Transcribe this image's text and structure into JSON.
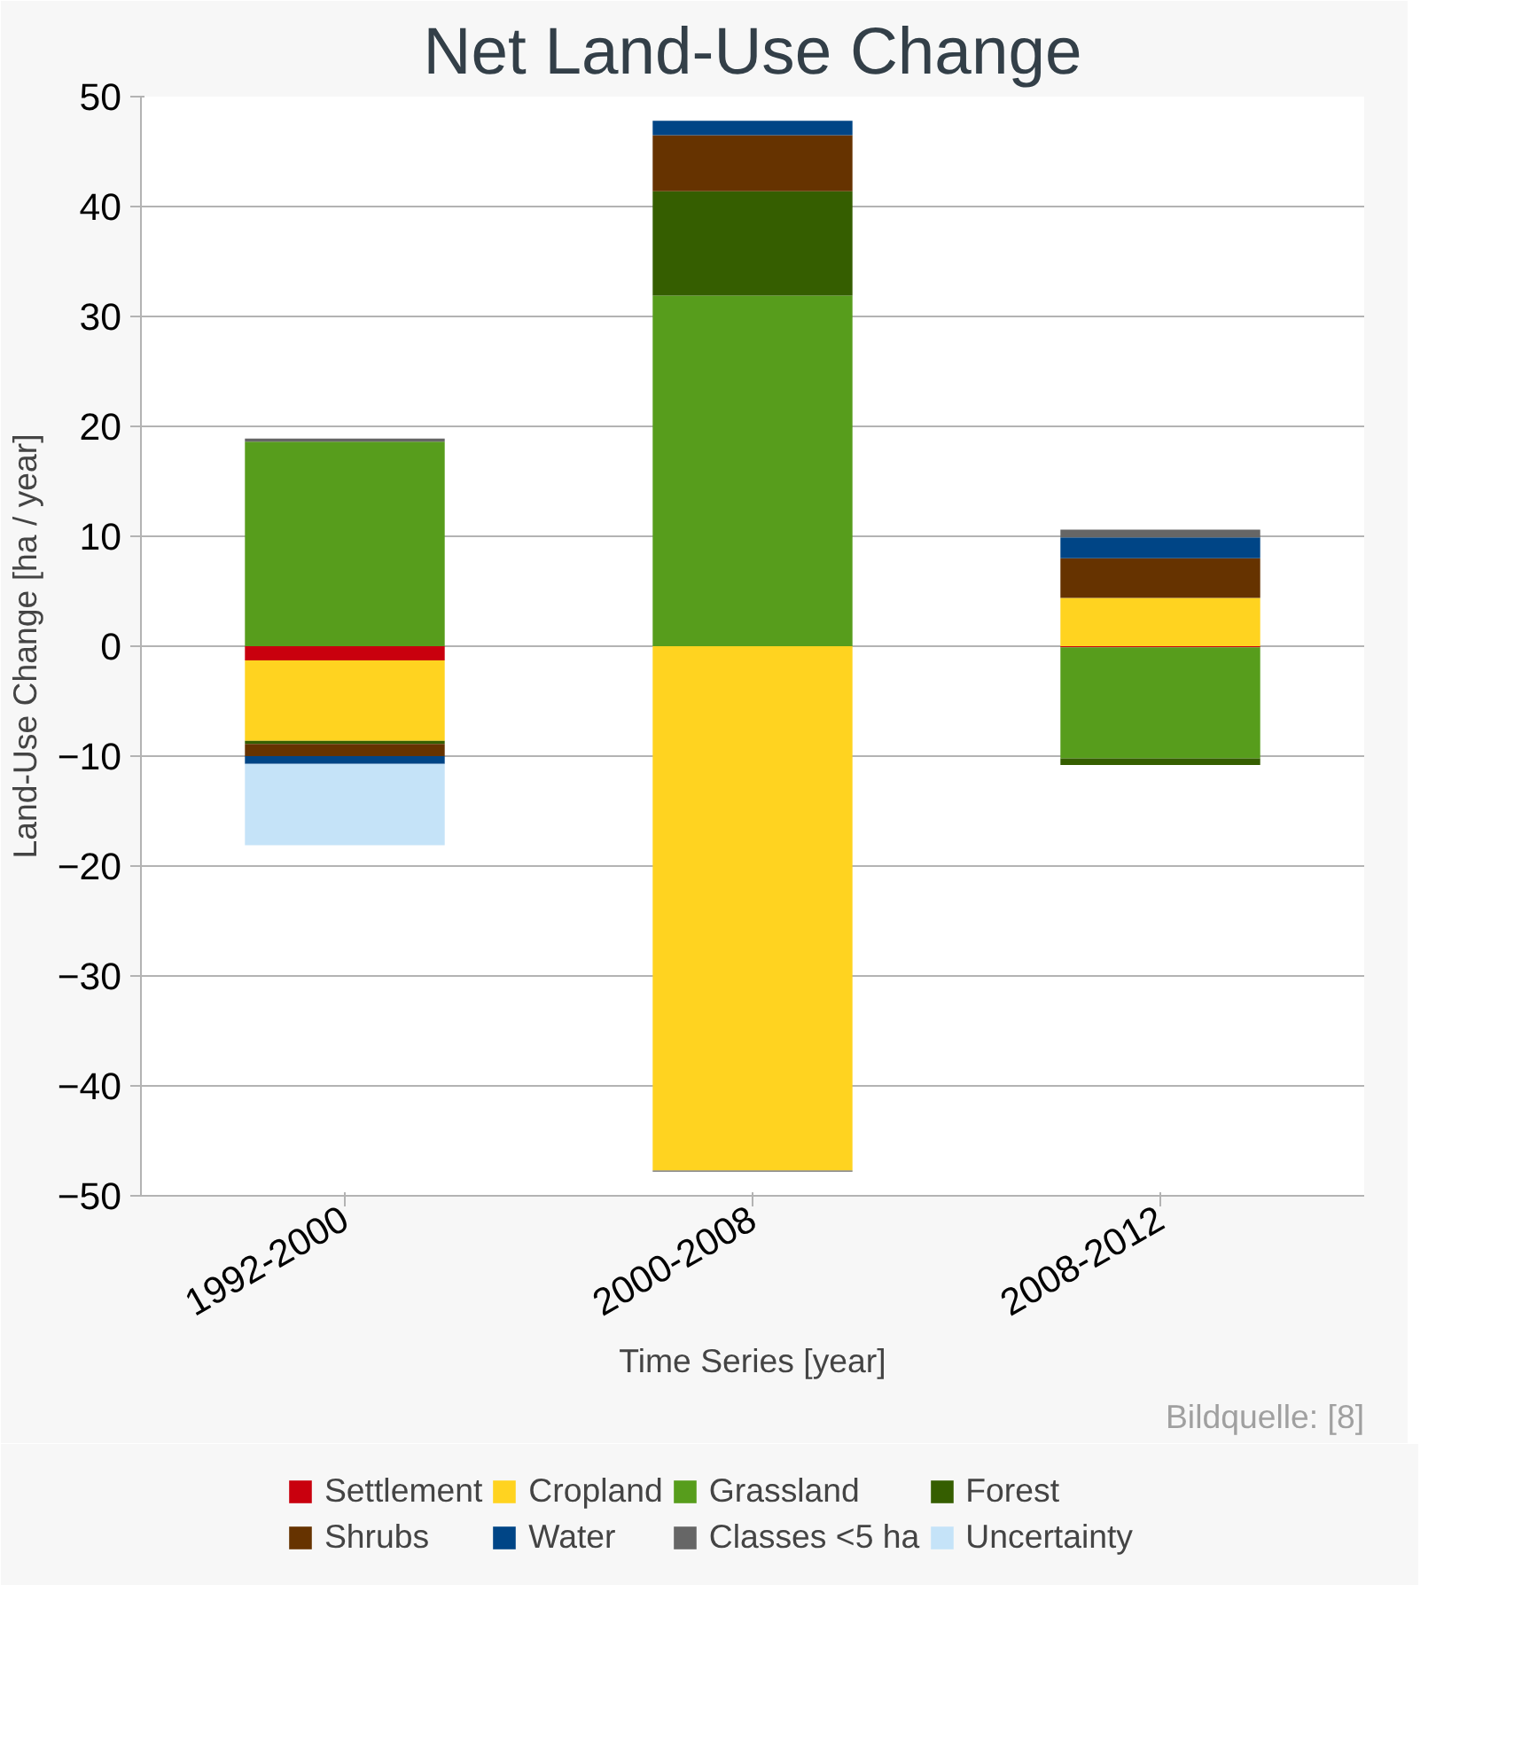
{
  "chart_data": {
    "type": "bar",
    "title": "Net Land-Use Change",
    "xlabel": "Time Series [year]",
    "ylabel": "Land-Use Change [ha / year]",
    "categories": [
      "1992-2000",
      "2000-2008",
      "2008-2012"
    ],
    "stacked": true,
    "series": [
      {
        "name": "Settlement",
        "color": "#c9000e",
        "values": [
          -1.3,
          null,
          -0.1
        ]
      },
      {
        "name": "Cropland",
        "color": "#ffd320",
        "values": [
          -7.3,
          -47.7,
          4.4
        ]
      },
      {
        "name": "Grassland",
        "color": "#579d1c",
        "values": [
          18.6,
          31.9,
          -10.1
        ]
      },
      {
        "name": "Forest",
        "color": "#355e00",
        "values": [
          -0.3,
          9.5,
          -0.6
        ]
      },
      {
        "name": "Shrubs",
        "color": "#663300",
        "values": [
          -1.1,
          5.1,
          3.6
        ]
      },
      {
        "name": "Water",
        "color": "#004586",
        "values": [
          -0.7,
          1.3,
          1.9
        ]
      },
      {
        "name": "Classes <5 ha",
        "color": "#666666",
        "values": [
          0.3,
          -0.1,
          0.7
        ]
      },
      {
        "name": "Uncertainty",
        "color": "#c5e3f8",
        "values": [
          -7.4,
          null,
          null
        ]
      }
    ],
    "ylim": [
      -50,
      50
    ],
    "yticks": [
      -50,
      -40,
      -30,
      -20,
      -10,
      0,
      10,
      20,
      30,
      40,
      50
    ],
    "grid": "y",
    "legend": "bottom",
    "annotations": [
      "Bildquelle: [8]"
    ]
  }
}
